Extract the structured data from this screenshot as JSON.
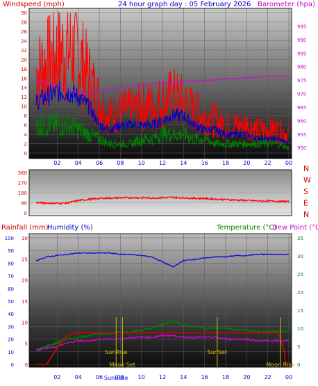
{
  "header": {
    "left_label": "Windspeed (mph)",
    "title": "24 hour graph day : 05 February 2026",
    "right_label": "Barometer (hpa)"
  },
  "bottom_header": {
    "rainfall": "Rainfall (mm)",
    "humidity": "Humidity (%)",
    "temperature": "Temperature (°C)",
    "dew_point": "Dew Point (°C)"
  },
  "colors": {
    "windspeed": "#ff0000",
    "gust_avg": "#0000cc",
    "low_wind": "#008000",
    "barometer": "#dd00dd",
    "direction": "#ff0000",
    "humidity": "#0000ee",
    "temperature": "#008000",
    "dew_point": "#dd00dd",
    "rainfall": "#dd0000",
    "sun_moon": "#d4c000"
  },
  "chart_data": [
    {
      "type": "line",
      "title": "24 hour graph day : 05 February 2026",
      "ylabel": "Windspeed (mph)",
      "y2label": "Barometer (hpa)",
      "ylim": [
        0,
        30
      ],
      "y2lim": [
        948,
        1000
      ],
      "yticks": [
        "0",
        "2",
        "4",
        "6",
        "8",
        "10",
        "12",
        "14",
        "16",
        "18",
        "20",
        "22",
        "24",
        "26",
        "28",
        "30"
      ],
      "y2ticks": [
        "950",
        "955",
        "960",
        "965",
        "970",
        "975",
        "980",
        "985",
        "990",
        "995"
      ],
      "x_ticks": [
        "02",
        "04",
        "06",
        "08",
        "10",
        "12",
        "14",
        "16",
        "18",
        "20",
        "22",
        "00"
      ],
      "x_hours": [
        0,
        1,
        2,
        3,
        4,
        5,
        6,
        7,
        8,
        9,
        10,
        11,
        12,
        13,
        14,
        15,
        16,
        17,
        18,
        19,
        20,
        21,
        22,
        23,
        24
      ],
      "series": [
        {
          "name": "Windspeed",
          "values": [
            17,
            19,
            21,
            22,
            21,
            16,
            11,
            8,
            9,
            9,
            10,
            10,
            11,
            12,
            11,
            9,
            8,
            7,
            6,
            6,
            6,
            5,
            5,
            5,
            4
          ]
        },
        {
          "name": "Average",
          "values": [
            11,
            12,
            13,
            13,
            12,
            10,
            6,
            5,
            6,
            6,
            6,
            6,
            7,
            8,
            8,
            6,
            5,
            5,
            4,
            4,
            4,
            3,
            3,
            3,
            2
          ]
        },
        {
          "name": "Low",
          "values": [
            6,
            6,
            6,
            6,
            5,
            4,
            3,
            2,
            2,
            2,
            3,
            3,
            4,
            4,
            4,
            3,
            3,
            2,
            2,
            2,
            2,
            2,
            2,
            2,
            1
          ]
        },
        {
          "name": "Barometer",
          "values": [
            975,
            974,
            973,
            972,
            970,
            970,
            971,
            972,
            972,
            973,
            973,
            973.5,
            974,
            974,
            974.5,
            974.5,
            975,
            975,
            975.5,
            975.5,
            976,
            976,
            976.5,
            976.5,
            976.5
          ]
        }
      ]
    },
    {
      "type": "line",
      "ylabel": "Wind direction",
      "ylim": [
        0,
        360
      ],
      "yticks": [
        "0",
        "90",
        "180",
        "270",
        "360"
      ],
      "compass_labels": [
        "N",
        "W",
        "S",
        "E",
        "N"
      ],
      "x_hours": [
        0,
        1,
        2,
        3,
        4,
        5,
        6,
        7,
        8,
        9,
        10,
        11,
        12,
        13,
        14,
        15,
        16,
        17,
        18,
        19,
        20,
        21,
        22,
        23,
        24
      ],
      "series": [
        {
          "name": "Direction",
          "values": [
            90,
            88,
            85,
            88,
            110,
            120,
            128,
            132,
            134,
            135,
            134,
            132,
            135,
            138,
            134,
            130,
            128,
            122,
            118,
            114,
            110,
            106,
            105,
            104,
            100
          ]
        }
      ]
    },
    {
      "type": "line",
      "ylabel": "Rainfall (mm)",
      "y1label": "Humidity (%)",
      "y2label": "Temperature (°C)",
      "y3label": "Dew Point (°C)",
      "rain_ylim": [
        0,
        30
      ],
      "humidity_ylim": [
        0,
        100
      ],
      "temp_ylim": [
        0,
        35
      ],
      "rain_ticks": [
        "0",
        "5",
        "10",
        "15",
        "20",
        "25",
        "30"
      ],
      "humidity_ticks": [
        "0",
        "10",
        "20",
        "30",
        "40",
        "50",
        "60",
        "70",
        "80",
        "90",
        "100"
      ],
      "temp_ticks": [
        "0",
        "5",
        "10",
        "15",
        "20",
        "25",
        "30",
        "35"
      ],
      "x_ticks": [
        "02",
        "04",
        "06",
        "08",
        "10",
        "12",
        "14",
        "16",
        "18",
        "20",
        "22",
        "00"
      ],
      "x_hours": [
        0,
        1,
        2,
        3,
        4,
        5,
        6,
        7,
        8,
        9,
        10,
        11,
        12,
        13,
        14,
        15,
        16,
        17,
        18,
        19,
        20,
        21,
        22,
        23,
        24
      ],
      "series": [
        {
          "name": "Humidity",
          "values": [
            82,
            85,
            86,
            87,
            88,
            88,
            88,
            88,
            87,
            87,
            86,
            85,
            81,
            77,
            82,
            83,
            84,
            85,
            85,
            86,
            86,
            87,
            87,
            87,
            87
          ]
        },
        {
          "name": "Temperature",
          "values": [
            4,
            5,
            6,
            7,
            7.5,
            8,
            8.5,
            8.5,
            9,
            9,
            9.5,
            10,
            11,
            12,
            11,
            10.5,
            10,
            10,
            10,
            9.5,
            9.5,
            9,
            9,
            9,
            9
          ]
        },
        {
          "name": "Dew Point",
          "values": [
            4,
            4.5,
            5,
            6,
            6.5,
            6.5,
            7,
            7,
            7,
            7.5,
            7.5,
            7.5,
            8,
            8,
            7.5,
            7.5,
            7.5,
            7.5,
            7,
            7,
            7,
            6.5,
            6.5,
            6.5,
            6.5
          ]
        },
        {
          "name": "Rainfall",
          "values": [
            0,
            0,
            4,
            7,
            7.5,
            7.5,
            7.5,
            7.5,
            7.5,
            7.5,
            7.5,
            7.5,
            7.5,
            7.5,
            7.5,
            7.5,
            7.5,
            7.5,
            7.5,
            7.5,
            7.5,
            7.5,
            7.5,
            7.5,
            0
          ]
        }
      ],
      "events": [
        {
          "label": "SunRise",
          "hour": 7.6
        },
        {
          "label": "Moon Set",
          "hour": 8.2
        },
        {
          "label": "SunSet",
          "hour": 17.2
        },
        {
          "label": "Moon Rise",
          "hour": 23.2
        },
        {
          "label": "SunBase",
          "hour": 7.6
        }
      ]
    }
  ]
}
